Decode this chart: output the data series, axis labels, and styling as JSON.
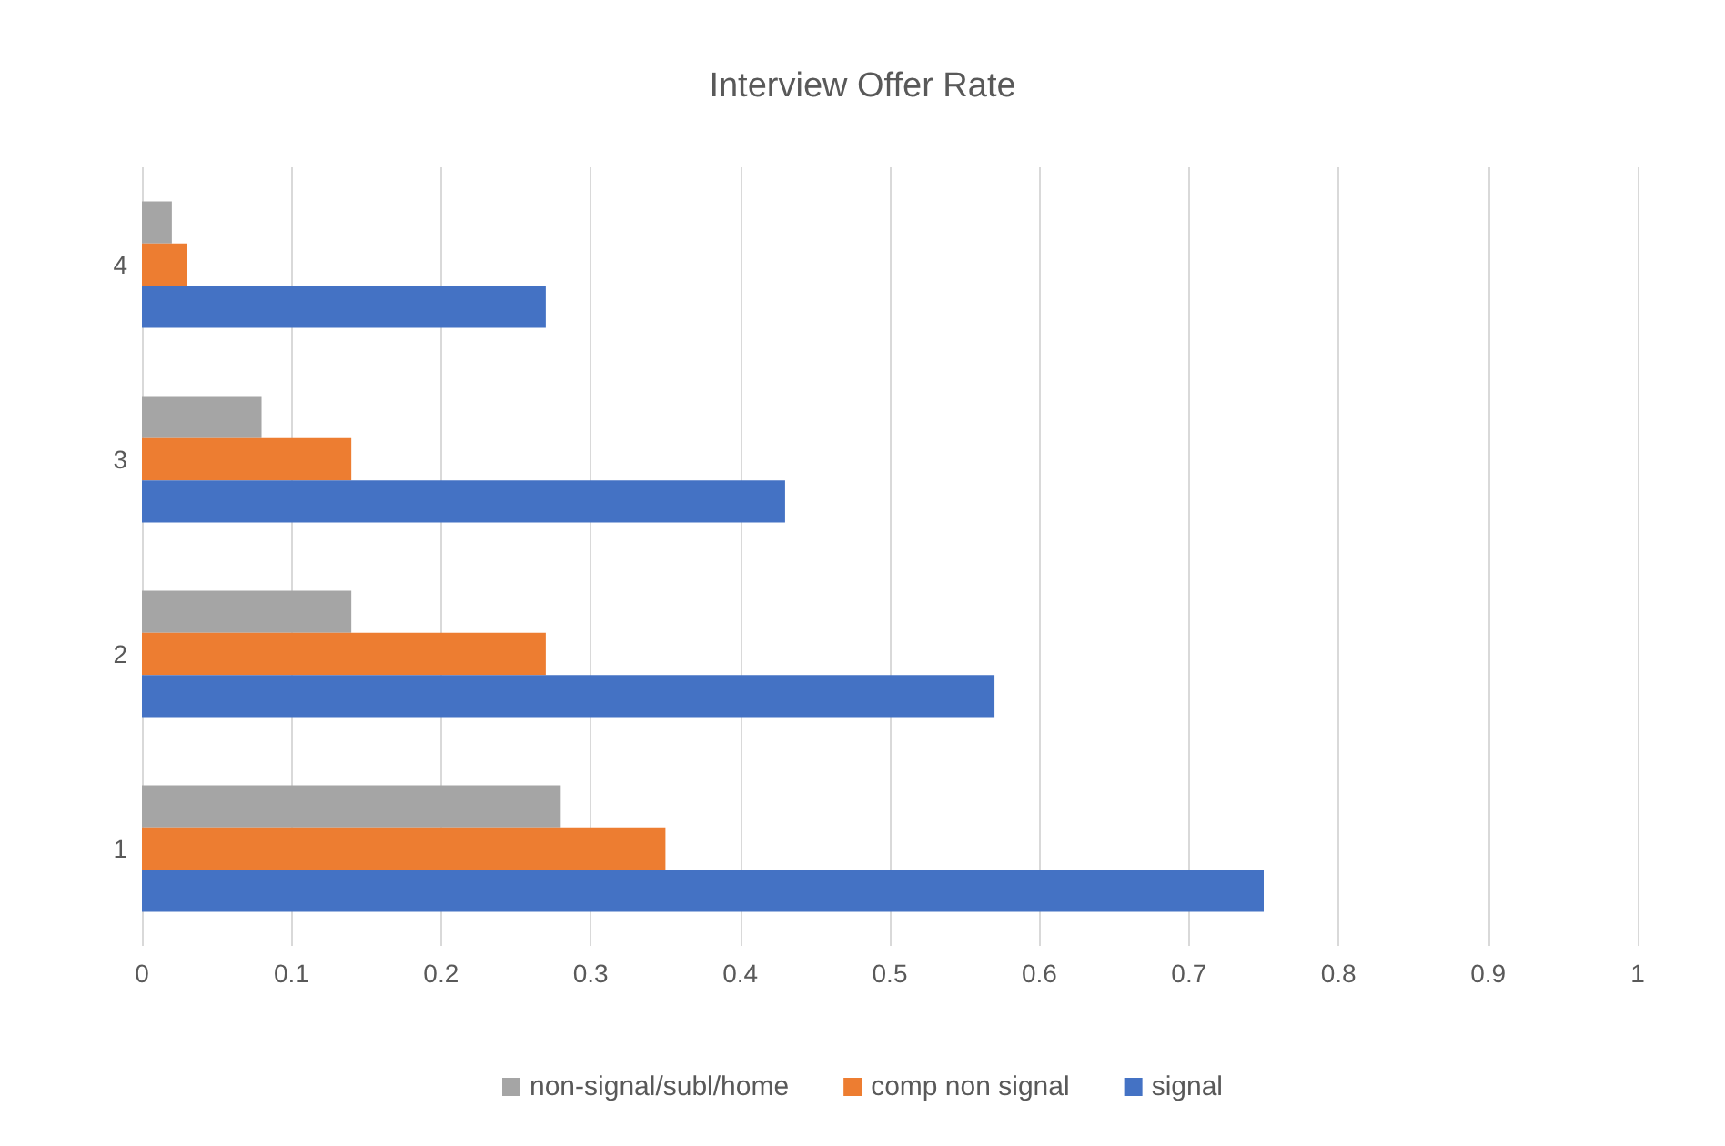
{
  "chart_data": {
    "type": "bar",
    "orientation": "horizontal",
    "title": "Interview Offer Rate",
    "categories": [
      "4",
      "3",
      "2",
      "1"
    ],
    "series": [
      {
        "name": "non-signal/subl/home",
        "color": "#a5a5a5",
        "values": [
          0.02,
          0.08,
          0.14,
          0.28
        ]
      },
      {
        "name": "comp non signal",
        "color": "#ed7d31",
        "values": [
          0.03,
          0.14,
          0.27,
          0.35
        ]
      },
      {
        "name": "signal",
        "color": "#4472c4",
        "values": [
          0.27,
          0.43,
          0.57,
          0.75
        ]
      }
    ],
    "xlim": [
      0,
      1
    ],
    "xticks": [
      0,
      0.1,
      0.2,
      0.3,
      0.4,
      0.5,
      0.6,
      0.7,
      0.8,
      0.9,
      1
    ],
    "grid": "x",
    "legend": "bottom"
  }
}
